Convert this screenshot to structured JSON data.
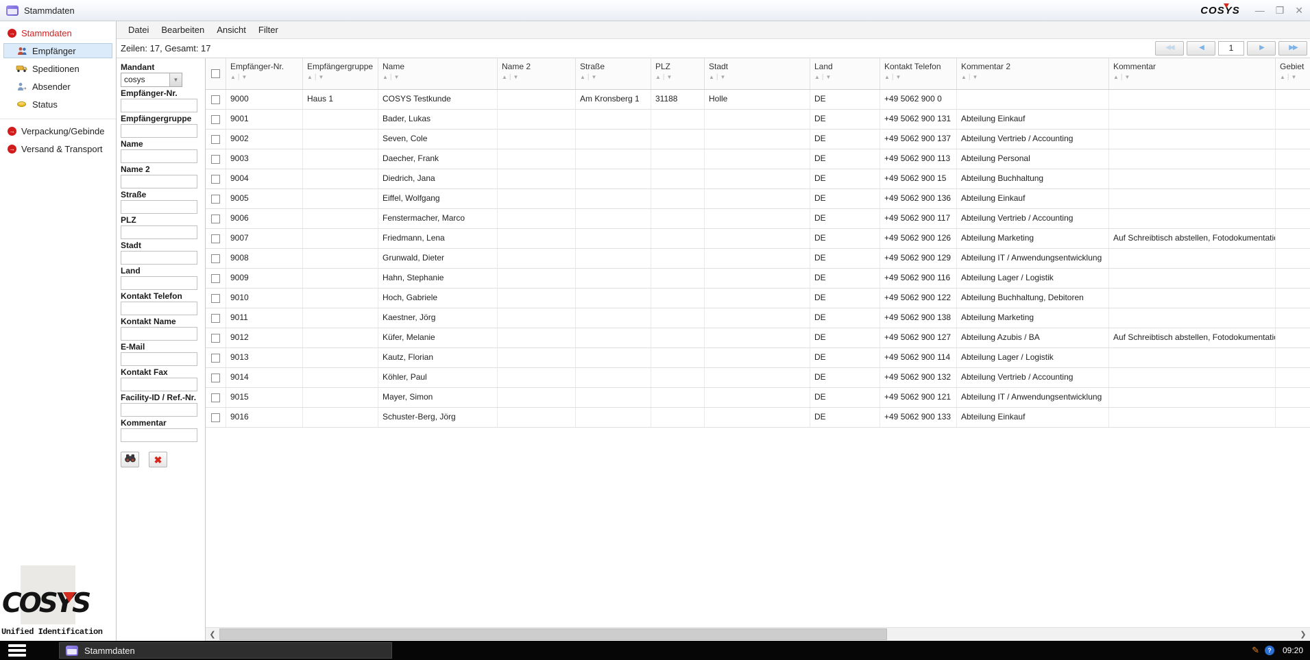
{
  "window": {
    "title": "Stammdaten",
    "brand": "COSYS",
    "controls": {
      "minimize": "—",
      "maximize": "❐",
      "close": "✕"
    }
  },
  "sidebar": {
    "items": [
      {
        "label": "Stammdaten"
      },
      {
        "label": "Empfänger"
      },
      {
        "label": "Speditionen"
      },
      {
        "label": "Absender"
      },
      {
        "label": "Status"
      },
      {
        "label": "Verpackung/Gebinde"
      },
      {
        "label": "Versand & Transport"
      }
    ]
  },
  "menubar": {
    "items": [
      "Datei",
      "Bearbeiten",
      "Ansicht",
      "Filter"
    ]
  },
  "infobar": {
    "rows_info": "Zeilen: 17, Gesamt: 17"
  },
  "pagination": {
    "page": "1"
  },
  "filter": {
    "mandant": {
      "label": "Mandant",
      "value": "cosys"
    },
    "fields": [
      "Empfänger-Nr.",
      "Empfängergruppe",
      "Name",
      "Name 2",
      "Straße",
      "PLZ",
      "Stadt",
      "Land",
      "Kontakt Telefon",
      "Kontakt Name",
      "E-Mail",
      "Kontakt Fax",
      "Facility-ID / Ref.-Nr.",
      "Kommentar"
    ]
  },
  "table": {
    "columns": [
      "Empfänger-Nr.",
      "Empfängergruppe",
      "Name",
      "Name 2",
      "Straße",
      "PLZ",
      "Stadt",
      "Land",
      "Kontakt Telefon",
      "Kommentar 2",
      "Kommentar",
      "Gebiet"
    ],
    "rows": [
      [
        "9000",
        "Haus 1",
        "COSYS Testkunde",
        "",
        "Am Kronsberg 1",
        "31188",
        "Holle",
        "DE",
        "+49 5062 900 0",
        "",
        "",
        ""
      ],
      [
        "9001",
        "",
        "Bader, Lukas",
        "",
        "",
        "",
        "",
        "DE",
        "+49 5062 900 131",
        "Abteilung Einkauf",
        "",
        ""
      ],
      [
        "9002",
        "",
        "Seven, Cole",
        "",
        "",
        "",
        "",
        "DE",
        "+49 5062 900 137",
        "Abteilung Vertrieb / Accounting",
        "",
        ""
      ],
      [
        "9003",
        "",
        "Daecher, Frank",
        "",
        "",
        "",
        "",
        "DE",
        "+49 5062 900 113",
        "Abteilung Personal",
        "",
        ""
      ],
      [
        "9004",
        "",
        "Diedrich, Jana",
        "",
        "",
        "",
        "",
        "DE",
        "+49 5062 900 15",
        "Abteilung Buchhaltung",
        "",
        ""
      ],
      [
        "9005",
        "",
        "Eiffel, Wolfgang",
        "",
        "",
        "",
        "",
        "DE",
        "+49 5062 900 136",
        "Abteilung Einkauf",
        "",
        ""
      ],
      [
        "9006",
        "",
        "Fenstermacher, Marco",
        "",
        "",
        "",
        "",
        "DE",
        "+49 5062 900 117",
        "Abteilung Vertrieb / Accounting",
        "",
        ""
      ],
      [
        "9007",
        "",
        "Friedmann, Lena",
        "",
        "",
        "",
        "",
        "DE",
        "+49 5062 900 126",
        "Abteilung Marketing",
        "Auf Schreibtisch abstellen, Fotodokumentation",
        ""
      ],
      [
        "9008",
        "",
        "Grunwald, Dieter",
        "",
        "",
        "",
        "",
        "DE",
        "+49 5062 900 129",
        "Abteilung IT / Anwendungsentwicklung",
        "",
        ""
      ],
      [
        "9009",
        "",
        "Hahn, Stephanie",
        "",
        "",
        "",
        "",
        "DE",
        "+49 5062 900 116",
        "Abteilung Lager / Logistik",
        "",
        ""
      ],
      [
        "9010",
        "",
        "Hoch, Gabriele",
        "",
        "",
        "",
        "",
        "DE",
        "+49 5062 900 122",
        "Abteilung Buchhaltung, Debitoren",
        "",
        ""
      ],
      [
        "9011",
        "",
        "Kaestner, Jörg",
        "",
        "",
        "",
        "",
        "DE",
        "+49 5062 900 138",
        "Abteilung Marketing",
        "",
        ""
      ],
      [
        "9012",
        "",
        "Küfer, Melanie",
        "",
        "",
        "",
        "",
        "DE",
        "+49 5062 900 127",
        "Abteilung Azubis / BA",
        "Auf Schreibtisch abstellen, Fotodokumentation",
        ""
      ],
      [
        "9013",
        "",
        "Kautz, Florian",
        "",
        "",
        "",
        "",
        "DE",
        "+49 5062 900 114",
        "Abteilung Lager / Logistik",
        "",
        ""
      ],
      [
        "9014",
        "",
        "Köhler, Paul",
        "",
        "",
        "",
        "",
        "DE",
        "+49 5062 900 132",
        "Abteilung Vertrieb / Accounting",
        "",
        ""
      ],
      [
        "9015",
        "",
        "Mayer, Simon",
        "",
        "",
        "",
        "",
        "DE",
        "+49 5062 900 121",
        "Abteilung IT / Anwendungsentwicklung",
        "",
        ""
      ],
      [
        "9016",
        "",
        "Schuster-Berg, Jörg",
        "",
        "",
        "",
        "",
        "DE",
        "+49 5062 900 133",
        "Abteilung Einkauf",
        "",
        ""
      ]
    ]
  },
  "logo": {
    "brand": "COSYS",
    "subtitle": "Unified Identification"
  },
  "taskbar": {
    "app_label": "Stammdaten",
    "time": "09:20"
  },
  "colors": {
    "accent_red": "#cc2222",
    "selection_blue": "#dcebf9",
    "pager_blue": "#7fb2e5"
  }
}
